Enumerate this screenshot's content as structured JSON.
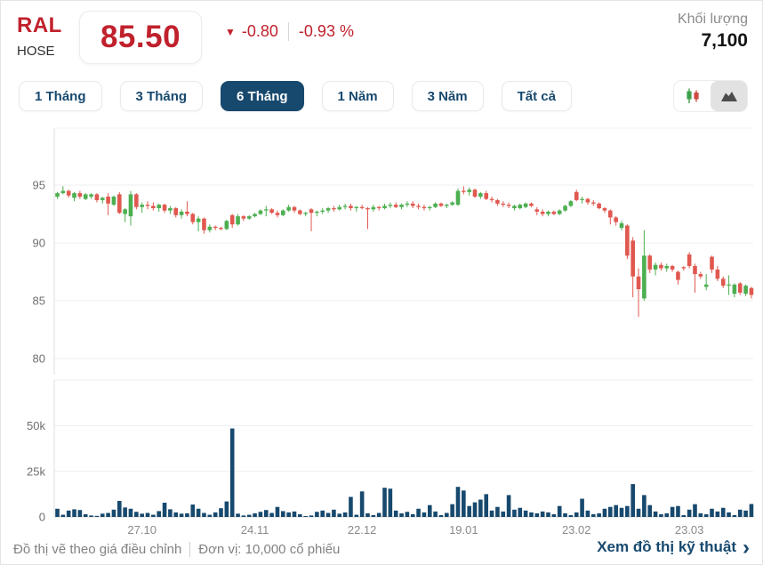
{
  "header": {
    "ticker": "RAL",
    "exchange": "HOSE",
    "price": "85.50",
    "down_arrow": "▼",
    "change": "-0.80",
    "change_percent": "-0.93 %",
    "volume_label": "Khối lượng",
    "volume_value": "7,100"
  },
  "tabs": [
    {
      "label": "1 Tháng",
      "active": false
    },
    {
      "label": "3 Tháng",
      "active": false
    },
    {
      "label": "6 Tháng",
      "active": true
    },
    {
      "label": "1 Năm",
      "active": false
    },
    {
      "label": "3 Năm",
      "active": false
    },
    {
      "label": "Tất cả",
      "active": false
    }
  ],
  "view_toggle": {
    "options": [
      "candlestick",
      "area"
    ],
    "active": "candlestick"
  },
  "footer": {
    "note_left": "Đồ thị vẽ theo giá điều chỉnh",
    "note_right": "Đơn vị: 10,000 cổ phiếu",
    "link_label": "Xem đồ thị kỹ thuật",
    "link_chevron": "›"
  },
  "colors": {
    "brand_red": "#c0212c",
    "navy": "#17496e",
    "candle_up": "#4caf50",
    "candle_down": "#e0584f",
    "volume_bar": "#17496e",
    "grid": "#efefef",
    "axis_line": "#dedede",
    "axis_text": "#6f6f6f",
    "date_text": "#8a8a8a"
  },
  "chart_data": {
    "type": "candlestick+volume",
    "title": "RAL 6-month daily price chart",
    "price_ticks": [
      95,
      90,
      85,
      80
    ],
    "price_ylim": [
      79.5,
      96.5
    ],
    "volume_ticks": [
      {
        "label": "50k",
        "value": 50
      },
      {
        "label": "25k",
        "value": 25
      },
      {
        "label": "0",
        "value": 0
      }
    ],
    "volume_unit": "thousand shares",
    "x_labels": [
      {
        "label": "27.10",
        "index": 15
      },
      {
        "label": "24.11",
        "index": 35
      },
      {
        "label": "22.12",
        "index": 54
      },
      {
        "label": "19.01",
        "index": 72
      },
      {
        "label": "23.02",
        "index": 92
      },
      {
        "label": "23.03",
        "index": 112
      }
    ],
    "candles": [
      [
        94.0,
        94.4,
        93.8,
        94.3
      ],
      [
        94.3,
        94.9,
        94.2,
        94.5
      ],
      [
        94.5,
        94.6,
        93.9,
        94.1
      ],
      [
        93.9,
        94.4,
        93.6,
        94.3
      ],
      [
        94.3,
        94.5,
        93.8,
        94.0
      ],
      [
        93.8,
        94.3,
        93.7,
        94.2
      ],
      [
        94.0,
        94.3,
        93.8,
        94.2
      ],
      [
        94.2,
        94.3,
        93.5,
        93.7
      ],
      [
        93.7,
        94.0,
        93.4,
        93.9
      ],
      [
        94.0,
        94.3,
        92.4,
        93.4
      ],
      [
        93.3,
        94.1,
        93.2,
        94.0
      ],
      [
        94.2,
        94.4,
        92.5,
        92.6
      ],
      [
        92.5,
        93.0,
        91.8,
        92.9
      ],
      [
        92.3,
        94.5,
        91.5,
        94.2
      ],
      [
        94.2,
        94.3,
        92.9,
        93.1
      ],
      [
        93.1,
        93.5,
        92.6,
        93.3
      ],
      [
        93.3,
        93.6,
        92.9,
        93.2
      ],
      [
        93.2,
        93.5,
        92.8,
        93.0
      ],
      [
        93.0,
        93.4,
        92.7,
        93.3
      ],
      [
        93.3,
        93.4,
        92.6,
        92.8
      ],
      [
        92.8,
        93.2,
        92.5,
        93.0
      ],
      [
        93.0,
        93.1,
        92.2,
        92.4
      ],
      [
        92.4,
        92.9,
        92.1,
        92.7
      ],
      [
        92.7,
        93.6,
        92.3,
        92.5
      ],
      [
        92.5,
        92.6,
        91.6,
        91.8
      ],
      [
        91.8,
        92.3,
        91.0,
        92.1
      ],
      [
        92.1,
        92.2,
        90.8,
        91.1
      ],
      [
        91.1,
        91.6,
        90.9,
        91.4
      ],
      [
        91.4,
        91.5,
        91.1,
        91.3
      ],
      [
        91.3,
        91.4,
        91.1,
        91.2
      ],
      [
        91.2,
        92.0,
        91.1,
        91.9
      ],
      [
        92.4,
        92.5,
        91.3,
        91.6
      ],
      [
        91.6,
        92.5,
        91.5,
        92.3
      ],
      [
        92.3,
        92.4,
        91.9,
        92.1
      ],
      [
        92.1,
        92.4,
        92.0,
        92.3
      ],
      [
        92.3,
        92.6,
        92.2,
        92.5
      ],
      [
        92.5,
        92.9,
        92.4,
        92.8
      ],
      [
        92.8,
        93.2,
        92.3,
        92.9
      ],
      [
        92.9,
        93.0,
        92.5,
        92.6
      ],
      [
        92.6,
        92.8,
        92.2,
        92.4
      ],
      [
        92.4,
        92.9,
        92.3,
        92.8
      ],
      [
        92.8,
        93.3,
        92.7,
        93.1
      ],
      [
        93.1,
        93.2,
        92.6,
        92.8
      ],
      [
        92.8,
        92.9,
        92.4,
        92.5
      ],
      [
        92.5,
        92.7,
        92.3,
        92.6
      ],
      [
        92.9,
        93.0,
        91.0,
        92.6
      ],
      [
        92.6,
        92.8,
        92.3,
        92.7
      ],
      [
        92.7,
        93.0,
        92.5,
        92.8
      ],
      [
        92.8,
        93.1,
        92.6,
        93.0
      ],
      [
        93.0,
        93.2,
        92.7,
        92.9
      ],
      [
        92.9,
        93.3,
        92.8,
        93.1
      ],
      [
        93.1,
        93.4,
        92.9,
        93.2
      ],
      [
        93.2,
        93.4,
        92.8,
        93.0
      ],
      [
        93.0,
        93.2,
        92.7,
        93.1
      ],
      [
        93.1,
        93.3,
        92.9,
        93.0
      ],
      [
        93.0,
        93.1,
        91.2,
        92.9
      ],
      [
        92.9,
        93.3,
        92.7,
        93.1
      ],
      [
        93.1,
        93.2,
        92.8,
        93.0
      ],
      [
        93.0,
        93.4,
        92.9,
        93.2
      ],
      [
        93.2,
        93.5,
        93.0,
        93.3
      ],
      [
        93.3,
        93.5,
        93.0,
        93.1
      ],
      [
        93.1,
        93.4,
        92.9,
        93.3
      ],
      [
        93.3,
        93.6,
        93.1,
        93.4
      ],
      [
        93.4,
        93.6,
        93.0,
        93.2
      ],
      [
        93.2,
        93.4,
        92.9,
        93.1
      ],
      [
        93.1,
        93.3,
        92.8,
        93.0
      ],
      [
        93.0,
        93.2,
        92.8,
        93.1
      ],
      [
        93.1,
        93.5,
        93.0,
        93.4
      ],
      [
        93.4,
        93.5,
        93.1,
        93.2
      ],
      [
        93.2,
        93.4,
        93.0,
        93.3
      ],
      [
        93.3,
        93.6,
        93.2,
        93.5
      ],
      [
        93.3,
        94.7,
        93.2,
        94.5
      ],
      [
        94.5,
        94.9,
        94.2,
        94.4
      ],
      [
        94.4,
        94.8,
        94.1,
        94.6
      ],
      [
        94.6,
        94.7,
        93.9,
        94.0
      ],
      [
        94.0,
        94.4,
        93.8,
        94.3
      ],
      [
        94.3,
        94.5,
        93.7,
        93.8
      ],
      [
        93.8,
        94.0,
        93.5,
        93.7
      ],
      [
        93.7,
        93.8,
        93.2,
        93.4
      ],
      [
        93.4,
        93.6,
        93.1,
        93.3
      ],
      [
        93.3,
        93.5,
        93.0,
        93.2
      ],
      [
        93.0,
        93.3,
        92.8,
        93.2
      ],
      [
        93.0,
        93.4,
        92.9,
        93.3
      ],
      [
        93.1,
        93.5,
        93.0,
        93.4
      ],
      [
        93.4,
        93.5,
        93.1,
        93.2
      ],
      [
        92.9,
        93.1,
        92.4,
        92.7
      ],
      [
        92.7,
        92.9,
        92.3,
        92.5
      ],
      [
        92.5,
        92.8,
        92.3,
        92.7
      ],
      [
        92.7,
        92.8,
        92.4,
        92.5
      ],
      [
        92.5,
        92.9,
        92.4,
        92.8
      ],
      [
        92.8,
        93.3,
        92.7,
        93.2
      ],
      [
        93.2,
        93.7,
        93.1,
        93.6
      ],
      [
        94.4,
        94.6,
        93.6,
        93.7
      ],
      [
        93.7,
        94.0,
        93.4,
        93.8
      ],
      [
        93.8,
        93.9,
        93.3,
        93.5
      ],
      [
        93.5,
        93.7,
        93.2,
        93.4
      ],
      [
        93.4,
        93.5,
        92.9,
        93.0
      ],
      [
        93.0,
        93.1,
        92.6,
        92.8
      ],
      [
        92.8,
        92.9,
        91.6,
        92.2
      ],
      [
        92.2,
        92.3,
        91.5,
        91.8
      ],
      [
        91.3,
        91.9,
        91.1,
        91.7
      ],
      [
        91.5,
        91.6,
        88.6,
        88.9
      ],
      [
        90.2,
        90.5,
        85.3,
        87.1
      ],
      [
        87.1,
        87.8,
        83.6,
        86.0
      ],
      [
        85.2,
        91.1,
        85.0,
        88.9
      ],
      [
        88.9,
        89.0,
        87.4,
        87.7
      ],
      [
        87.7,
        88.3,
        87.2,
        88.1
      ],
      [
        88.1,
        88.3,
        87.6,
        87.8
      ],
      [
        87.8,
        88.2,
        87.5,
        88.0
      ],
      [
        88.0,
        88.1,
        87.5,
        87.7
      ],
      [
        87.5,
        87.6,
        86.4,
        86.8
      ],
      [
        87.9,
        88.0,
        87.6,
        87.8
      ],
      [
        89.0,
        89.2,
        87.8,
        88.0
      ],
      [
        88.0,
        88.2,
        85.7,
        87.3
      ],
      [
        87.3,
        87.5,
        86.9,
        87.1
      ],
      [
        86.2,
        87.3,
        85.9,
        86.4
      ],
      [
        88.8,
        88.9,
        87.4,
        87.7
      ],
      [
        87.7,
        88.0,
        86.7,
        86.9
      ],
      [
        86.9,
        87.1,
        86.1,
        86.3
      ],
      [
        86.3,
        87.2,
        85.5,
        86.4
      ],
      [
        85.6,
        86.5,
        85.3,
        86.4
      ],
      [
        86.5,
        86.6,
        85.5,
        85.7
      ],
      [
        85.6,
        86.4,
        85.4,
        86.3
      ],
      [
        86.1,
        86.2,
        85.2,
        85.5
      ]
    ],
    "volume_k": [
      4.5,
      1.2,
      3.5,
      4.2,
      3.8,
      1.5,
      0.8,
      0.6,
      1.8,
      2.2,
      4.0,
      8.8,
      5.2,
      4.5,
      2.8,
      1.8,
      2.2,
      1.2,
      3.2,
      7.8,
      4.2,
      2.5,
      1.8,
      2.0,
      6.8,
      4.5,
      2.2,
      1.2,
      2.5,
      4.8,
      8.5,
      48.5,
      1.8,
      0.8,
      1.2,
      2.0,
      2.8,
      3.8,
      2.2,
      5.5,
      3.2,
      2.5,
      3.0,
      1.5,
      0.5,
      0.8,
      2.8,
      3.5,
      2.2,
      4.0,
      1.8,
      2.5,
      11.0,
      1.2,
      14.0,
      2.0,
      1.0,
      2.2,
      16.0,
      15.5,
      3.5,
      2.0,
      2.8,
      1.5,
      4.5,
      2.5,
      6.5,
      3.0,
      1.0,
      2.2,
      7.0,
      16.5,
      14.5,
      6.0,
      8.0,
      9.5,
      12.5,
      3.5,
      5.5,
      3.0,
      12.0,
      4.0,
      5.0,
      3.5,
      2.5,
      2.0,
      3.0,
      2.5,
      1.5,
      6.0,
      2.0,
      1.0,
      2.5,
      10.0,
      3.5,
      1.5,
      2.0,
      4.5,
      5.5,
      6.5,
      5.0,
      6.0,
      18.0,
      4.5,
      12.0,
      6.5,
      3.0,
      1.5,
      2.0,
      5.5,
      6.0,
      1.0,
      4.0,
      7.0,
      2.0,
      1.5,
      4.5,
      3.0,
      5.0,
      2.5,
      1.0,
      4.0,
      3.5,
      7.1
    ]
  }
}
